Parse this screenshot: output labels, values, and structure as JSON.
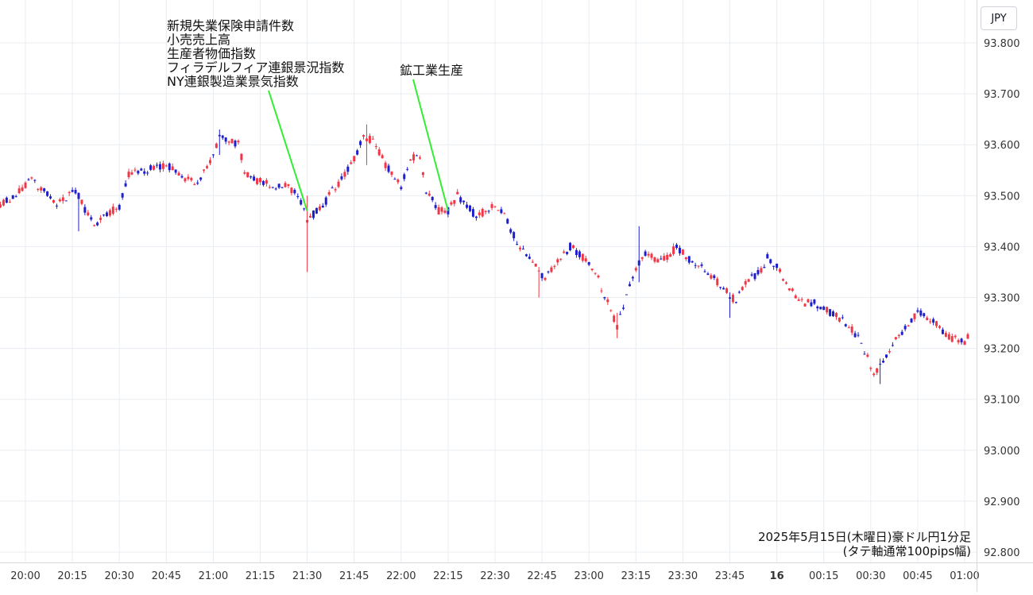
{
  "chart_data": {
    "type": "candlestick",
    "currency": "JPY",
    "ylim": [
      92.78,
      93.87
    ],
    "y_ticks": [
      "93.800",
      "93.700",
      "93.600",
      "93.500",
      "93.400",
      "93.300",
      "93.200",
      "93.100",
      "93.000",
      "92.900",
      "92.800"
    ],
    "x_ticks": [
      "20:00",
      "20:15",
      "20:30",
      "20:45",
      "21:00",
      "21:15",
      "21:30",
      "21:45",
      "22:00",
      "22:15",
      "22:30",
      "22:45",
      "23:00",
      "23:15",
      "23:30",
      "23:45",
      "16",
      "00:15",
      "00:30",
      "00:45",
      "01:00"
    ],
    "x_bold_tick": "16",
    "colors": {
      "up": "#f23645",
      "down": "#1e1ecc",
      "grid": "#e8edf2",
      "annotation_line": "#33ee33",
      "axis_text": "#333333"
    },
    "annotations": [
      {
        "time": "21:30",
        "price": 93.47,
        "lines": [
          "新規失業保険申請件数",
          "小売売上高",
          "生産者物価指数",
          "フィラデルフィア連銀景況指数",
          "NY連銀製造業景気指数"
        ]
      },
      {
        "time": "22:15",
        "price": 93.47,
        "lines": [
          "鉱工業生産"
        ]
      }
    ],
    "caption": [
      "2025年5月15日(木曜日)豪ドル円1分足",
      "(タテ軸通常100pips幅)"
    ],
    "path": [
      [
        "19:52",
        93.48
      ],
      [
        "20:00",
        93.52
      ],
      [
        "20:02",
        93.53
      ],
      [
        "20:08",
        93.5
      ],
      [
        "20:10",
        93.48
      ],
      [
        "20:15",
        93.51
      ],
      [
        "20:17",
        93.5
      ],
      [
        "20:20",
        93.46
      ],
      [
        "20:22",
        93.44
      ],
      [
        "20:25",
        93.46
      ],
      [
        "20:30",
        93.48
      ],
      [
        "20:33",
        93.54
      ],
      [
        "20:38",
        93.55
      ],
      [
        "20:45",
        93.56
      ],
      [
        "20:50",
        93.54
      ],
      [
        "20:55",
        93.52
      ],
      [
        "21:00",
        93.58
      ],
      [
        "21:02",
        93.62
      ],
      [
        "21:08",
        93.6
      ],
      [
        "21:10",
        93.55
      ],
      [
        "21:13",
        93.53
      ],
      [
        "21:20",
        93.52
      ],
      [
        "21:24",
        93.52
      ],
      [
        "21:28",
        93.49
      ],
      [
        "21:30",
        93.45
      ],
      [
        "21:33",
        93.47
      ],
      [
        "21:36",
        93.49
      ],
      [
        "21:38",
        93.51
      ],
      [
        "21:42",
        93.54
      ],
      [
        "21:45",
        93.57
      ],
      [
        "21:48",
        93.62
      ],
      [
        "21:52",
        93.6
      ],
      [
        "21:55",
        93.56
      ],
      [
        "22:00",
        93.52
      ],
      [
        "22:03",
        93.57
      ],
      [
        "22:06",
        93.58
      ],
      [
        "22:08",
        93.51
      ],
      [
        "22:12",
        93.47
      ],
      [
        "22:15",
        93.47
      ],
      [
        "22:18",
        93.5
      ],
      [
        "22:21",
        93.48
      ],
      [
        "22:24",
        93.46
      ],
      [
        "22:27",
        93.47
      ],
      [
        "22:30",
        93.48
      ],
      [
        "22:33",
        93.46
      ],
      [
        "22:37",
        93.41
      ],
      [
        "22:41",
        93.38
      ],
      [
        "22:44",
        93.35
      ],
      [
        "22:46",
        93.34
      ],
      [
        "22:50",
        93.37
      ],
      [
        "22:54",
        93.4
      ],
      [
        "22:58",
        93.38
      ],
      [
        "23:00",
        93.37
      ],
      [
        "23:02",
        93.35
      ],
      [
        "23:06",
        93.29
      ],
      [
        "23:09",
        93.24
      ],
      [
        "23:11",
        93.28
      ],
      [
        "23:14",
        93.34
      ],
      [
        "23:16",
        93.37
      ],
      [
        "23:19",
        93.39
      ],
      [
        "23:22",
        93.37
      ],
      [
        "23:25",
        93.38
      ],
      [
        "23:28",
        93.4
      ],
      [
        "23:33",
        93.37
      ],
      [
        "23:38",
        93.35
      ],
      [
        "23:43",
        93.32
      ],
      [
        "23:47",
        93.29
      ],
      [
        "23:50",
        93.33
      ],
      [
        "23:55",
        93.35
      ],
      [
        "23:57",
        93.38
      ],
      [
        "00:00",
        93.36
      ],
      [
        "00:05",
        93.31
      ],
      [
        "00:08",
        93.29
      ],
      [
        "00:12",
        93.29
      ],
      [
        "00:17",
        93.27
      ],
      [
        "00:22",
        93.25
      ],
      [
        "00:26",
        93.22
      ],
      [
        "00:29",
        93.18
      ],
      [
        "00:31",
        93.15
      ],
      [
        "00:34",
        93.17
      ],
      [
        "00:37",
        93.21
      ],
      [
        "00:41",
        93.24
      ],
      [
        "00:45",
        93.27
      ],
      [
        "00:49",
        93.26
      ],
      [
        "00:52",
        93.24
      ],
      [
        "00:56",
        93.22
      ],
      [
        "01:00",
        93.21
      ],
      [
        "01:01",
        93.22
      ]
    ],
    "spikes": [
      {
        "time": "21:30",
        "low": 93.35,
        "high": 93.5
      },
      {
        "time": "21:49",
        "low": 93.56,
        "high": 93.64
      },
      {
        "time": "23:16",
        "low": 93.33,
        "high": 93.44
      },
      {
        "time": "23:09",
        "low": 93.22,
        "high": 93.27
      },
      {
        "time": "00:33",
        "low": 93.13,
        "high": 93.18
      },
      {
        "time": "22:44",
        "low": 93.3,
        "high": 93.36
      },
      {
        "time": "21:02",
        "low": 93.58,
        "high": 93.63
      },
      {
        "time": "20:17",
        "low": 93.43,
        "high": 93.49
      },
      {
        "time": "23:45",
        "low": 93.26,
        "high": 93.31
      }
    ]
  }
}
